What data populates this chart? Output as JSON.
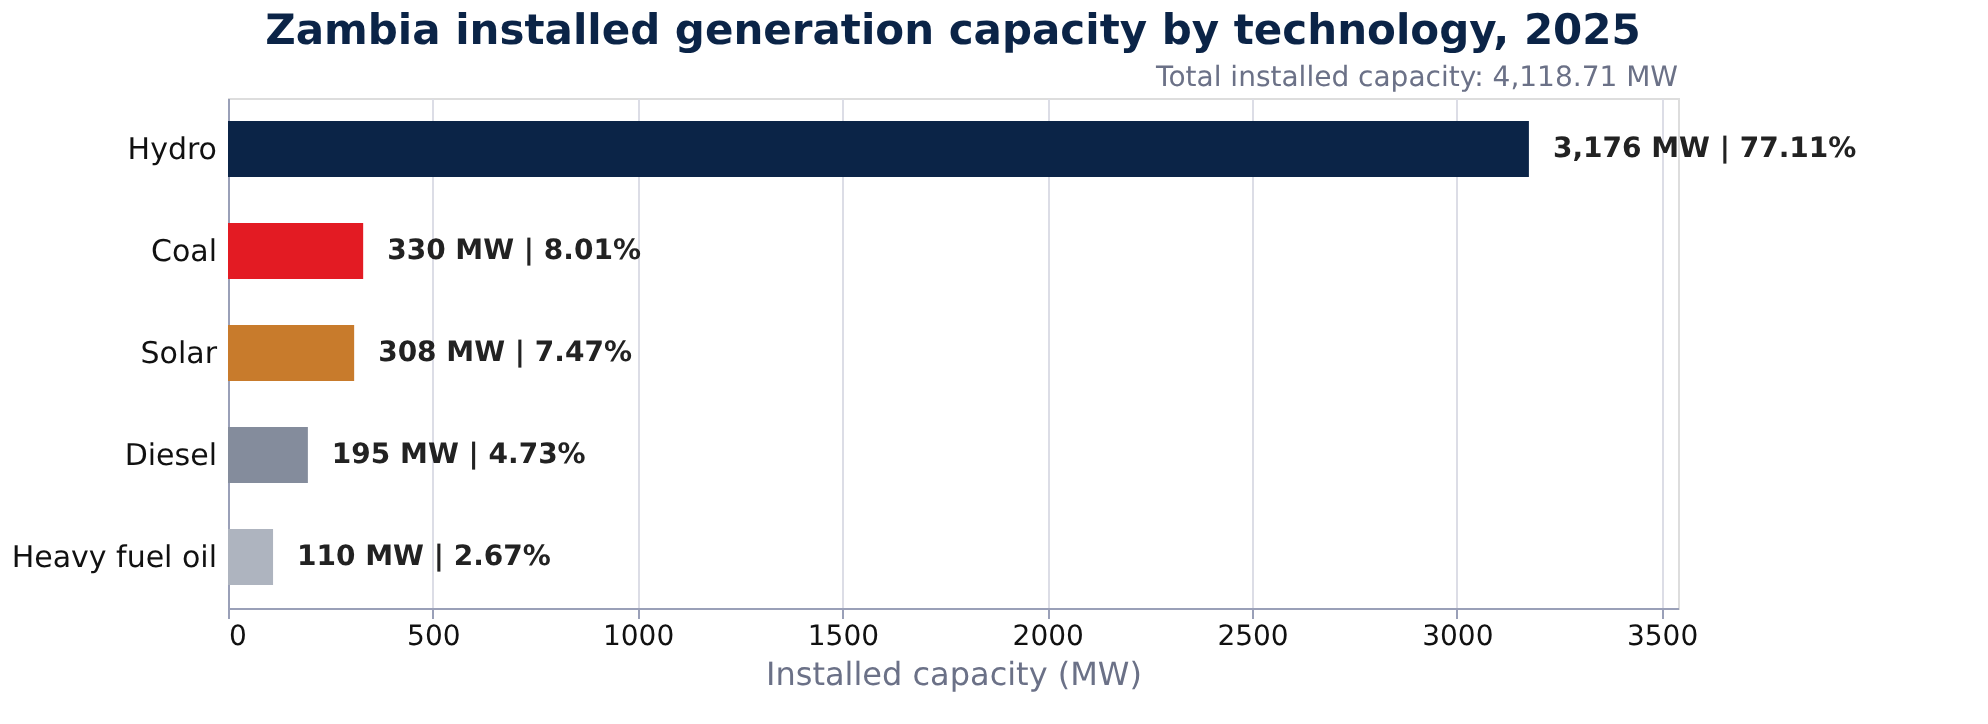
{
  "chart_data": {
    "type": "bar",
    "orientation": "horizontal",
    "title": "Zambia installed generation capacity by technology, 2025",
    "subtitle": "Total installed capacity: 4,118.71 MW",
    "xlabel": "Installed capacity (MW)",
    "categories": [
      "Hydro",
      "Coal",
      "Solar",
      "Diesel",
      "Heavy fuel oil"
    ],
    "values": [
      3176,
      330,
      308,
      195,
      110
    ],
    "colors": [
      "#0b2447",
      "#e31b23",
      "#c87b2c",
      "#848c9c",
      "#aeb4bf"
    ],
    "value_labels": [
      "3,176 MW  |  77.11%",
      "330 MW  |  8.01%",
      "308 MW  |  7.47%",
      "195 MW  |  4.73%",
      "110 MW  |  2.67%"
    ],
    "xlim": [
      0,
      3540
    ],
    "xticks": [
      0,
      500,
      1000,
      1500,
      2000,
      2500,
      3000,
      3500
    ],
    "grid": "x"
  }
}
